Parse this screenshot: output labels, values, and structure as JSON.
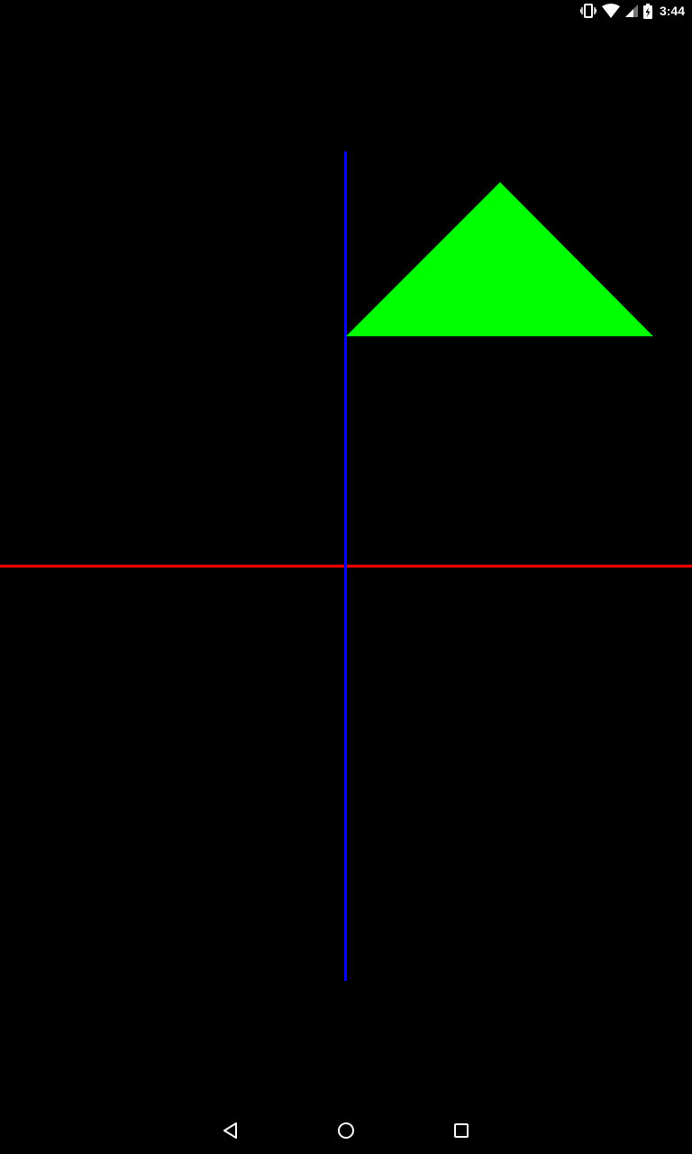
{
  "status_bar": {
    "time": "3:44",
    "icons": [
      "vibrate-icon",
      "wifi-icon",
      "cell-signal-icon",
      "battery-charging-icon"
    ],
    "icon_color": "#ffffff"
  },
  "scene": {
    "background_color": "#000000",
    "horizontal_axis_color": "#ff0000",
    "vertical_axis_color": "#0000ff",
    "triangle_color": "#00ff00"
  },
  "nav_bar": {
    "buttons": [
      "back-icon",
      "home-icon",
      "recents-icon"
    ],
    "icon_color": "#ffffff"
  }
}
